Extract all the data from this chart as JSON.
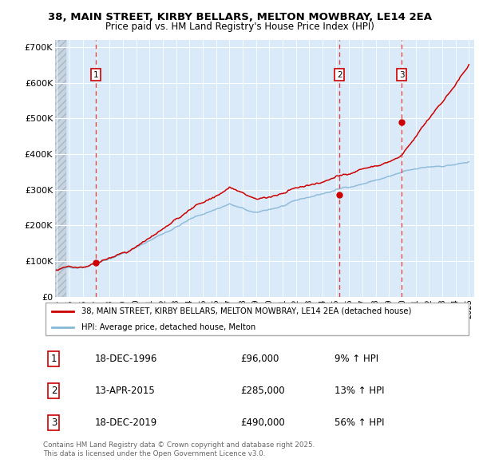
{
  "title_line1": "38, MAIN STREET, KIRBY BELLARS, MELTON MOWBRAY, LE14 2EA",
  "title_line2": "Price paid vs. HM Land Registry's House Price Index (HPI)",
  "ylim": [
    0,
    720000
  ],
  "yticks": [
    0,
    100000,
    200000,
    300000,
    400000,
    500000,
    600000,
    700000
  ],
  "ytick_labels": [
    "£0",
    "£100K",
    "£200K",
    "£300K",
    "£400K",
    "£500K",
    "£600K",
    "£700K"
  ],
  "xstart_year": 1994,
  "xend_year": 2025,
  "bg_color": "#daeaf8",
  "hatch_color": "#c8d8e8",
  "grid_color": "#ffffff",
  "red_line_color": "#cc0000",
  "blue_line_color": "#88b8d8",
  "dashed_line_color": "#dd4444",
  "sale_date_nums": [
    1996.96,
    2015.28,
    2019.96
  ],
  "sale_prices": [
    96000,
    285000,
    490000
  ],
  "sale_labels": [
    "1",
    "2",
    "3"
  ],
  "legend_label_red": "38, MAIN STREET, KIRBY BELLARS, MELTON MOWBRAY, LE14 2EA (detached house)",
  "legend_label_blue": "HPI: Average price, detached house, Melton",
  "annotation_rows": [
    {
      "num": "1",
      "date": "18-DEC-1996",
      "price": "£96,000",
      "pct": "9% ↑ HPI"
    },
    {
      "num": "2",
      "date": "13-APR-2015",
      "price": "£285,000",
      "pct": "13% ↑ HPI"
    },
    {
      "num": "3",
      "date": "18-DEC-2019",
      "price": "£490,000",
      "pct": "56% ↑ HPI"
    }
  ],
  "footer": "Contains HM Land Registry data © Crown copyright and database right 2025.\nThis data is licensed under the Open Government Licence v3.0."
}
